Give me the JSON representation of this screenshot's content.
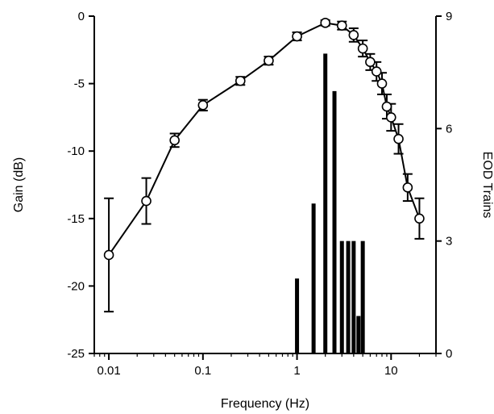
{
  "chart_data": {
    "type": "line",
    "xlabel": "Frequency (Hz)",
    "ylabel": "Gain (dB)",
    "y2label": "EOD Trains",
    "xscale": "log",
    "xlim": [
      0.007,
      30
    ],
    "ylim": [
      -25,
      0
    ],
    "y2lim": [
      0,
      9
    ],
    "x_ticks": [
      {
        "value": 0.01,
        "label": "0.01"
      },
      {
        "value": 0.1,
        "label": "0.1"
      },
      {
        "value": 1,
        "label": "1"
      },
      {
        "value": 10,
        "label": "10"
      }
    ],
    "y_ticks": [
      {
        "value": 0,
        "label": "0"
      },
      {
        "value": -5,
        "label": "-5"
      },
      {
        "value": -10,
        "label": "-10"
      },
      {
        "value": -15,
        "label": "-15"
      },
      {
        "value": -20,
        "label": "-20"
      },
      {
        "value": -25,
        "label": "-25"
      }
    ],
    "y2_ticks": [
      {
        "value": 0,
        "label": "0"
      },
      {
        "value": 3,
        "label": "3"
      },
      {
        "value": 6,
        "label": "6"
      },
      {
        "value": 9,
        "label": "9"
      }
    ],
    "series": [
      {
        "kind": "line-with-errorbars",
        "axis": "left",
        "x": [
          0.01,
          0.025,
          0.05,
          0.1,
          0.25,
          0.5,
          1,
          2,
          3,
          4,
          5,
          6,
          7,
          8,
          9,
          10,
          12,
          15,
          20
        ],
        "y": [
          -17.7,
          -13.7,
          -9.2,
          -6.6,
          -4.8,
          -3.3,
          -1.5,
          -0.5,
          -0.7,
          -1.4,
          -2.4,
          -3.4,
          -4.1,
          -5.0,
          -6.7,
          -7.5,
          -9.1,
          -12.7,
          -15.0
        ],
        "yerr": [
          4.2,
          1.7,
          0.5,
          0.4,
          0.3,
          0.3,
          0.3,
          0.2,
          0.3,
          0.5,
          0.6,
          0.6,
          0.7,
          0.8,
          0.9,
          1.0,
          1.1,
          1.0,
          1.5
        ]
      },
      {
        "kind": "bar",
        "axis": "right",
        "x": [
          1,
          1.5,
          2,
          2.5,
          3,
          3.5,
          4,
          4.5,
          5
        ],
        "values": [
          2,
          4,
          8,
          7,
          3,
          3,
          3,
          1,
          3
        ]
      }
    ]
  }
}
